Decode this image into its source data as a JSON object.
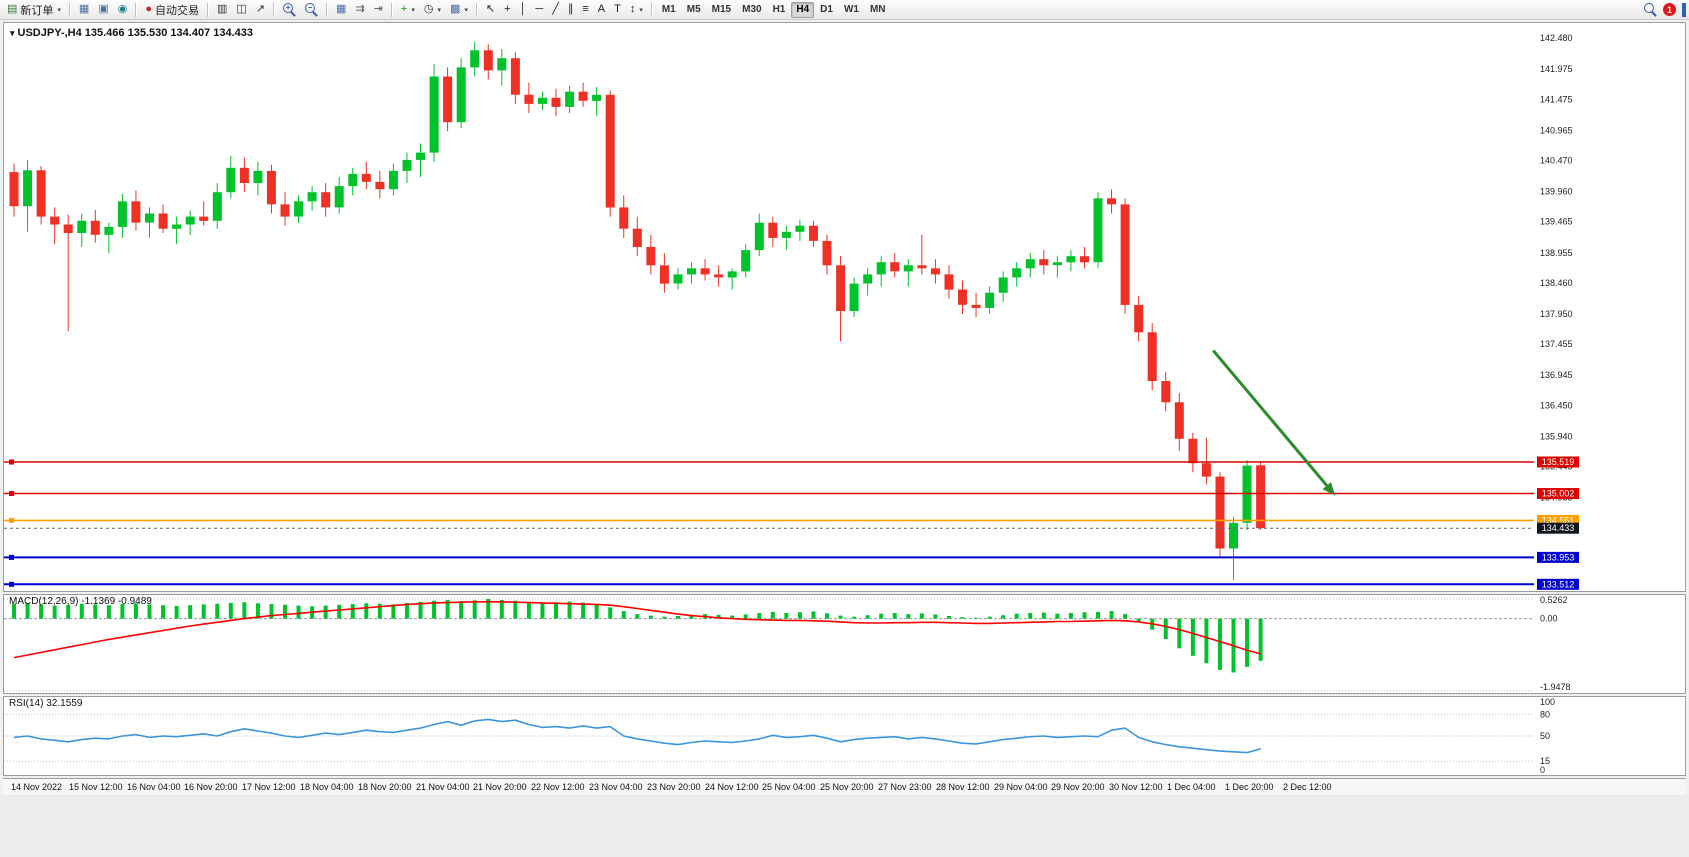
{
  "toolbar": {
    "notification_badge": "1",
    "active_timeframe": "H4",
    "timeframes": [
      "M1",
      "M5",
      "M15",
      "M30",
      "H1",
      "H4",
      "D1",
      "W1",
      "MN"
    ],
    "icon_groups": [
      [
        {
          "name": "new-order-button",
          "glyph": "▤",
          "color": "#2e7d32",
          "label": "新订单",
          "caret": true
        }
      ],
      [
        {
          "name": "tile-windows-icon",
          "glyph": "▦",
          "color": "#4a6fa5"
        },
        {
          "name": "print-icon",
          "glyph": "▣",
          "color": "#4a6fa5"
        },
        {
          "name": "preview-icon",
          "glyph": "◉",
          "color": "#20808f"
        }
      ],
      [
        {
          "name": "auto-trading-button",
          "glyph": "●",
          "color": "#d62020",
          "label": "自动交易"
        }
      ],
      [
        {
          "name": "bar-chart-type-button",
          "glyph": "▥",
          "color": "#333333"
        },
        {
          "name": "candlestick-chart-type-button",
          "glyph": "◫",
          "color": "#333333"
        },
        {
          "name": "line-chart-type-button",
          "glyph": "↗",
          "color": "#333333"
        }
      ],
      [
        {
          "name": "zoom-in-button",
          "mag": "+"
        },
        {
          "name": "zoom-out-button",
          "mag": "−"
        }
      ],
      [
        {
          "name": "tile-grid-icon",
          "glyph": "▦",
          "color": "#4a6fa5"
        },
        {
          "name": "auto-scroll-button",
          "glyph": "⇉",
          "color": "#555555"
        },
        {
          "name": "chart-shift-button",
          "glyph": "⇥",
          "color": "#555555"
        }
      ],
      [
        {
          "name": "indicators-button",
          "glyph": "+",
          "color": "#009900",
          "caret": true
        },
        {
          "name": "periods-button",
          "glyph": "◷",
          "color": "#333333",
          "caret": true
        },
        {
          "name": "templates-button",
          "glyph": "▩",
          "color": "#4a6fa5",
          "caret": true
        }
      ],
      [
        {
          "name": "cursor-tool-button",
          "glyph": "↖",
          "color": "#222222"
        },
        {
          "name": "crosshair-tool-button",
          "glyph": "+",
          "color": "#222222"
        },
        {
          "name": "vertical-line-tool-button",
          "glyph": "│",
          "color": "#222222"
        },
        {
          "name": "horizontal-line-tool-button",
          "glyph": "─",
          "color": "#222222"
        },
        {
          "name": "trendline-tool-button",
          "glyph": "╱",
          "color": "#222222"
        },
        {
          "name": "channel-tool-button",
          "glyph": "∥",
          "color": "#222222"
        },
        {
          "name": "fibonacci-tool-button",
          "glyph": "≡",
          "color": "#222222"
        },
        {
          "name": "text-tool-button",
          "glyph": "A",
          "color": "#222222"
        },
        {
          "name": "label-tool-button",
          "glyph": "T",
          "color": "#222222"
        },
        {
          "name": "arrows-tool-button",
          "glyph": "↕",
          "color": "#222222",
          "caret": true
        }
      ]
    ]
  },
  "chart": {
    "title": "USDJPY-,H4 135.466 135.530 134.407 134.433",
    "symbol": "USDJPY-",
    "period": "H4"
  },
  "macd": {
    "label": "MACD(12,26,9) -1.1369 -0.9489"
  },
  "rsi": {
    "label": "RSI(14) 32.1559"
  },
  "colors": {
    "bull": "#00c32b",
    "bear": "#ee3124",
    "macd_hist": "#00c32b",
    "macd_signal": "#ff0000",
    "rsi_line": "#3c96dc",
    "arrow": "#2e8b2e",
    "current_label_bg": "#10151f",
    "axis_text": "#222222"
  },
  "chart_data": {
    "type": "candlestick",
    "symbol": "USDJPY-",
    "period": "H4",
    "current": {
      "open": 135.466,
      "high": 135.53,
      "low": 134.407,
      "close": 134.433
    },
    "price_range": {
      "min": 133.5,
      "max": 142.63
    },
    "price_axis_labels": [
      "142.480",
      "141.975",
      "141.475",
      "140.965",
      "140.470",
      "139.960",
      "139.465",
      "138.955",
      "138.460",
      "137.950",
      "137.455",
      "136.945",
      "136.450",
      "135.940",
      "135.445",
      "134.935",
      "134.430",
      "133.925"
    ],
    "time_labels": [
      "14 Nov 2022",
      "15 Nov 12:00",
      "16 Nov 04:00",
      "16 Nov 20:00",
      "17 Nov 12:00",
      "18 Nov 04:00",
      "18 Nov 20:00",
      "21 Nov 04:00",
      "21 Nov 20:00",
      "22 Nov 12:00",
      "23 Nov 04:00",
      "23 Nov 20:00",
      "24 Nov 12:00",
      "25 Nov 04:00",
      "25 Nov 20:00",
      "27 Nov 23:00",
      "28 Nov 12:00",
      "29 Nov 04:00",
      "29 Nov 20:00",
      "30 Nov 12:00",
      "1 Dec 04:00",
      "1 Dec 20:00",
      "2 Dec 12:00"
    ],
    "candles": [
      [
        140.28,
        140.42,
        139.55,
        139.72
      ],
      [
        139.72,
        140.48,
        139.3,
        140.31
      ],
      [
        140.31,
        140.38,
        139.42,
        139.55
      ],
      [
        139.55,
        139.7,
        139.1,
        139.42
      ],
      [
        139.42,
        139.58,
        137.67,
        139.28
      ],
      [
        139.28,
        139.6,
        139.05,
        139.48
      ],
      [
        139.48,
        139.66,
        139.12,
        139.25
      ],
      [
        139.25,
        139.45,
        138.95,
        139.38
      ],
      [
        139.38,
        139.92,
        139.2,
        139.8
      ],
      [
        139.8,
        139.98,
        139.32,
        139.45
      ],
      [
        139.45,
        139.7,
        139.2,
        139.6
      ],
      [
        139.6,
        139.75,
        139.28,
        139.35
      ],
      [
        139.35,
        139.55,
        139.1,
        139.42
      ],
      [
        139.42,
        139.65,
        139.25,
        139.55
      ],
      [
        139.55,
        139.8,
        139.4,
        139.48
      ],
      [
        139.48,
        140.1,
        139.35,
        139.95
      ],
      [
        139.95,
        140.55,
        139.85,
        140.35
      ],
      [
        140.35,
        140.52,
        139.95,
        140.1
      ],
      [
        140.1,
        140.45,
        139.9,
        140.3
      ],
      [
        140.3,
        140.4,
        139.6,
        139.75
      ],
      [
        139.75,
        139.95,
        139.4,
        139.55
      ],
      [
        139.55,
        139.9,
        139.45,
        139.8
      ],
      [
        139.8,
        140.05,
        139.65,
        139.95
      ],
      [
        139.95,
        140.1,
        139.55,
        139.7
      ],
      [
        139.7,
        140.2,
        139.6,
        140.05
      ],
      [
        140.05,
        140.35,
        139.9,
        140.25
      ],
      [
        140.25,
        140.45,
        140.0,
        140.12
      ],
      [
        140.12,
        140.3,
        139.85,
        140.0
      ],
      [
        140.0,
        140.42,
        139.9,
        140.3
      ],
      [
        140.3,
        140.6,
        140.1,
        140.48
      ],
      [
        140.48,
        140.75,
        140.2,
        140.6
      ],
      [
        140.6,
        142.05,
        140.45,
        141.85
      ],
      [
        141.85,
        142.0,
        140.95,
        141.1
      ],
      [
        141.1,
        142.15,
        141.0,
        142.0
      ],
      [
        142.0,
        142.42,
        141.85,
        142.28
      ],
      [
        142.28,
        142.38,
        141.8,
        141.95
      ],
      [
        141.95,
        142.3,
        141.7,
        142.15
      ],
      [
        142.15,
        142.25,
        141.4,
        141.55
      ],
      [
        141.55,
        141.75,
        141.25,
        141.4
      ],
      [
        141.4,
        141.6,
        141.3,
        141.5
      ],
      [
        141.5,
        141.65,
        141.2,
        141.35
      ],
      [
        141.35,
        141.7,
        141.25,
        141.6
      ],
      [
        141.6,
        141.75,
        141.35,
        141.45
      ],
      [
        141.45,
        141.68,
        141.2,
        141.55
      ],
      [
        141.55,
        141.62,
        139.55,
        139.7
      ],
      [
        139.7,
        139.9,
        139.2,
        139.35
      ],
      [
        139.35,
        139.55,
        138.9,
        139.05
      ],
      [
        139.05,
        139.25,
        138.6,
        138.75
      ],
      [
        138.75,
        138.95,
        138.3,
        138.45
      ],
      [
        138.45,
        138.7,
        138.35,
        138.6
      ],
      [
        138.6,
        138.8,
        138.45,
        138.7
      ],
      [
        138.7,
        138.85,
        138.5,
        138.6
      ],
      [
        138.6,
        138.75,
        138.4,
        138.55
      ],
      [
        138.55,
        138.7,
        138.35,
        138.65
      ],
      [
        138.65,
        139.1,
        138.55,
        139.0
      ],
      [
        139.0,
        139.6,
        138.9,
        139.45
      ],
      [
        139.45,
        139.55,
        139.05,
        139.2
      ],
      [
        139.2,
        139.4,
        139.0,
        139.3
      ],
      [
        139.3,
        139.5,
        139.15,
        139.4
      ],
      [
        139.4,
        139.48,
        139.05,
        139.15
      ],
      [
        139.15,
        139.25,
        138.6,
        138.75
      ],
      [
        138.75,
        138.9,
        137.5,
        138.0
      ],
      [
        138.0,
        138.55,
        137.9,
        138.45
      ],
      [
        138.45,
        138.7,
        138.25,
        138.6
      ],
      [
        138.6,
        138.9,
        138.4,
        138.8
      ],
      [
        138.8,
        138.95,
        138.55,
        138.65
      ],
      [
        138.65,
        138.85,
        138.4,
        138.75
      ],
      [
        138.75,
        139.25,
        138.6,
        138.7
      ],
      [
        138.7,
        138.85,
        138.45,
        138.6
      ],
      [
        138.6,
        138.75,
        138.2,
        138.35
      ],
      [
        138.35,
        138.5,
        137.95,
        138.1
      ],
      [
        138.1,
        138.3,
        137.9,
        138.05
      ],
      [
        138.05,
        138.4,
        137.95,
        138.3
      ],
      [
        138.3,
        138.65,
        138.15,
        138.55
      ],
      [
        138.55,
        138.8,
        138.4,
        138.7
      ],
      [
        138.7,
        138.95,
        138.55,
        138.85
      ],
      [
        138.85,
        139.0,
        138.6,
        138.75
      ],
      [
        138.75,
        138.9,
        138.55,
        138.8
      ],
      [
        138.8,
        139.0,
        138.65,
        138.9
      ],
      [
        138.9,
        139.05,
        138.7,
        138.8
      ],
      [
        138.8,
        139.95,
        138.7,
        139.85
      ],
      [
        139.85,
        140.0,
        139.6,
        139.75
      ],
      [
        139.75,
        139.85,
        137.95,
        138.1
      ],
      [
        138.1,
        138.25,
        137.5,
        137.65
      ],
      [
        137.65,
        137.8,
        136.7,
        136.85
      ],
      [
        136.85,
        137.0,
        136.35,
        136.5
      ],
      [
        136.5,
        136.65,
        135.7,
        135.9
      ],
      [
        135.9,
        136.0,
        135.35,
        135.5
      ],
      [
        135.5,
        135.92,
        135.15,
        135.28
      ],
      [
        135.28,
        135.35,
        133.95,
        134.1
      ],
      [
        134.1,
        134.62,
        133.58,
        134.52
      ],
      [
        134.52,
        135.55,
        134.4,
        135.46
      ],
      [
        135.466,
        135.53,
        134.407,
        134.433
      ]
    ],
    "hlines": [
      {
        "price": 135.519,
        "color": "#e00000",
        "label": "135.519",
        "width": 1.4
      },
      {
        "price": 135.002,
        "color": "#e00000",
        "label": "135.002",
        "width": 1.4
      },
      {
        "price": 134.561,
        "color": "#ffa000",
        "label": "134.561",
        "width": 1.6
      },
      {
        "price": 133.953,
        "color": "#0000d0",
        "label": "133.953",
        "width": 2
      },
      {
        "price": 133.512,
        "color": "#0000d0",
        "label": "133.512",
        "width": 2
      }
    ],
    "current_price": {
      "price": 134.433,
      "label": "134.433"
    },
    "arrow": {
      "from": {
        "i": 88.5,
        "price": 137.35
      },
      "to": {
        "i": 97.5,
        "price": 134.97
      }
    },
    "macd": {
      "params": "12,26,9",
      "value": -1.1369,
      "signal_value": -0.9489,
      "range": {
        "min": -1.9478,
        "max": 0.5262
      },
      "axis_labels": [
        "0.5262",
        "0.00",
        "-1.9478"
      ],
      "histogram": [
        0.4,
        0.42,
        0.38,
        0.35,
        0.37,
        0.4,
        0.38,
        0.36,
        0.39,
        0.41,
        0.38,
        0.36,
        0.34,
        0.36,
        0.38,
        0.4,
        0.42,
        0.44,
        0.41,
        0.39,
        0.37,
        0.35,
        0.33,
        0.35,
        0.37,
        0.39,
        0.41,
        0.4,
        0.38,
        0.42,
        0.45,
        0.48,
        0.5,
        0.47,
        0.49,
        0.5262,
        0.5,
        0.48,
        0.45,
        0.42,
        0.44,
        0.46,
        0.43,
        0.4,
        0.3,
        0.2,
        0.12,
        0.08,
        0.05,
        0.07,
        0.1,
        0.12,
        0.1,
        0.08,
        0.11,
        0.15,
        0.18,
        0.15,
        0.17,
        0.19,
        0.14,
        0.08,
        0.05,
        0.09,
        0.13,
        0.15,
        0.12,
        0.14,
        0.11,
        0.07,
        0.04,
        0.02,
        0.05,
        0.09,
        0.13,
        0.15,
        0.16,
        0.13,
        0.15,
        0.17,
        0.18,
        0.2,
        0.12,
        -0.08,
        -0.3,
        -0.55,
        -0.8,
        -1.0,
        -1.2,
        -1.38,
        -1.45,
        -1.3,
        -1.1369
      ],
      "signal": [
        -1.05,
        -0.98,
        -0.91,
        -0.84,
        -0.77,
        -0.7,
        -0.63,
        -0.56,
        -0.5,
        -0.44,
        -0.38,
        -0.32,
        -0.26,
        -0.2,
        -0.15,
        -0.1,
        -0.05,
        0.0,
        0.04,
        0.08,
        0.11,
        0.14,
        0.17,
        0.2,
        0.23,
        0.26,
        0.29,
        0.32,
        0.35,
        0.38,
        0.4,
        0.42,
        0.43,
        0.44,
        0.45,
        0.45,
        0.45,
        0.44,
        0.43,
        0.42,
        0.41,
        0.4,
        0.39,
        0.38,
        0.36,
        0.32,
        0.27,
        0.22,
        0.17,
        0.12,
        0.08,
        0.05,
        0.02,
        0.0,
        -0.02,
        -0.03,
        -0.04,
        -0.05,
        -0.05,
        -0.06,
        -0.07,
        -0.09,
        -0.11,
        -0.12,
        -0.12,
        -0.11,
        -0.11,
        -0.1,
        -0.1,
        -0.11,
        -0.12,
        -0.13,
        -0.13,
        -0.12,
        -0.11,
        -0.1,
        -0.09,
        -0.08,
        -0.08,
        -0.07,
        -0.06,
        -0.05,
        -0.06,
        -0.09,
        -0.14,
        -0.21,
        -0.3,
        -0.4,
        -0.51,
        -0.62,
        -0.73,
        -0.85,
        -0.9489
      ]
    },
    "rsi": {
      "period": 14,
      "value": 32.1559,
      "range": {
        "min": 0,
        "max": 100
      },
      "axis_labels": [
        "100",
        "80",
        "50",
        "15",
        "0"
      ],
      "levels": [
        80,
        50,
        15
      ],
      "values": [
        48,
        50,
        46,
        44,
        42,
        45,
        47,
        46,
        50,
        52,
        48,
        50,
        49,
        51,
        53,
        50,
        56,
        60,
        57,
        54,
        50,
        48,
        51,
        54,
        52,
        55,
        58,
        56,
        55,
        58,
        61,
        66,
        70,
        65,
        71,
        73,
        70,
        72,
        66,
        62,
        63,
        61,
        64,
        61,
        63,
        50,
        46,
        43,
        40,
        38,
        41,
        43,
        42,
        41,
        43,
        46,
        51,
        48,
        49,
        51,
        47,
        42,
        45,
        47,
        48,
        49,
        46,
        48,
        46,
        43,
        40,
        39,
        42,
        45,
        47,
        49,
        50,
        48,
        49,
        50,
        49,
        58,
        61,
        48,
        42,
        38,
        35,
        33,
        31,
        29,
        28,
        27,
        32.16
      ]
    }
  }
}
